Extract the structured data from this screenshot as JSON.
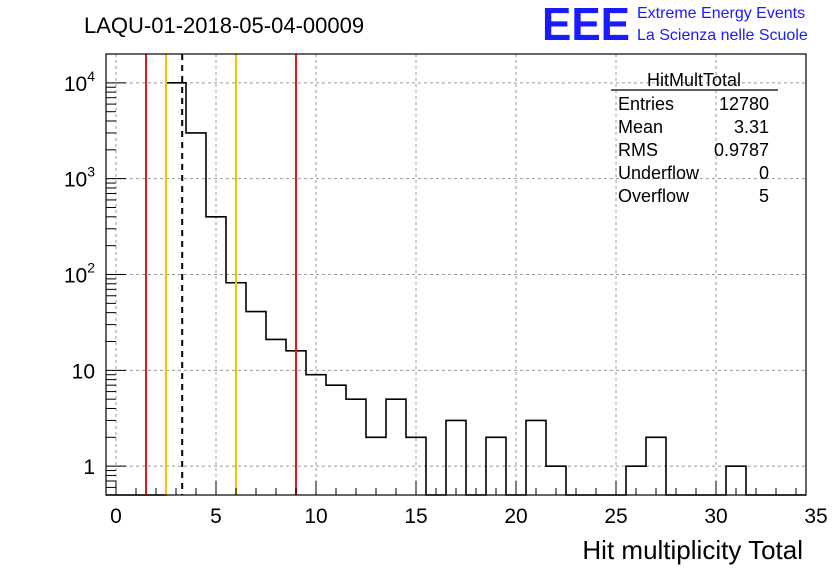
{
  "chart_data": {
    "type": "histogram",
    "title": "LAQU-01-2018-05-04-00009",
    "xlabel": "Hit multiplicity Total",
    "ylabel": "",
    "xlim": [
      -0.5,
      34.5
    ],
    "ylim": [
      0.5,
      20000
    ],
    "yscale": "log",
    "grid": true,
    "bin_width": 1,
    "bin_edges_start": -0.5,
    "values": [
      0,
      0,
      0,
      10000,
      3000,
      400,
      82,
      41,
      21,
      16,
      9,
      7,
      5,
      2,
      5,
      2,
      0,
      3,
      0,
      2,
      0,
      3,
      1,
      0,
      0,
      0,
      1,
      2,
      0,
      0,
      0,
      1,
      0,
      0,
      0
    ],
    "x_ticks": [
      0,
      5,
      10,
      15,
      20,
      25,
      30,
      35
    ],
    "x_tick_labels": [
      "0",
      "5",
      "10",
      "15",
      "20",
      "25",
      "30",
      "35"
    ],
    "y_ticks": [
      {
        "value": 1,
        "label": "1"
      },
      {
        "value": 10,
        "label": "10"
      },
      {
        "value": 100,
        "label": "10",
        "exp": "2"
      },
      {
        "value": 1000,
        "label": "10",
        "exp": "3"
      },
      {
        "value": 10000,
        "label": "10",
        "exp": "4"
      }
    ],
    "vertical_lines": [
      {
        "x": 1.5,
        "color": "#e8141e",
        "style": "solid"
      },
      {
        "x": 2.5,
        "color": "#f2c200",
        "style": "solid"
      },
      {
        "x": 3.31,
        "color": "#000000",
        "style": "dashed"
      },
      {
        "x": 6.0,
        "color": "#f2c200",
        "style": "solid"
      },
      {
        "x": 9.0,
        "color": "#e8141e",
        "style": "solid"
      }
    ],
    "stats": {
      "title": "HitMultTotal",
      "rows": [
        {
          "label": "Entries",
          "value": "12780"
        },
        {
          "label": "Mean",
          "value": "3.31"
        },
        {
          "label": "RMS",
          "value": "0.9787"
        },
        {
          "label": "Underflow",
          "value": "0"
        },
        {
          "label": "Overflow",
          "value": "5"
        }
      ]
    }
  },
  "branding": {
    "logo": "EEE",
    "line1": "Extreme Energy Events",
    "line2": "La Scienza nelle Scuole"
  },
  "colors": {
    "red": "#e8141e",
    "yellow": "#f2c200",
    "brand": "#1a1aff",
    "grid": "#9a9a9a"
  }
}
